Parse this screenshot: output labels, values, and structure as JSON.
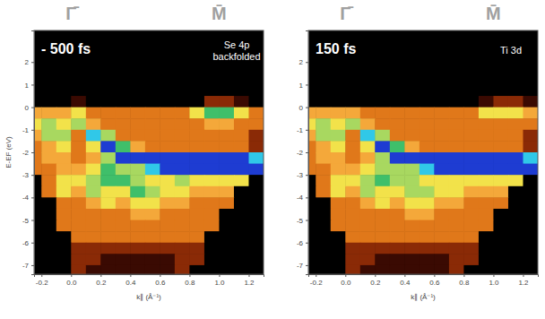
{
  "chart_data": [
    {
      "type": "heatmap",
      "xlabel": "k∥ (Å⁻¹)",
      "ylabel": "E-EF (eV)",
      "xlim": [
        -0.25,
        1.3
      ],
      "ylim": [
        -7.4,
        3.4
      ],
      "xticks": [
        -0.2,
        {
          "value": 0,
          "label": "0.0"
        },
        0.2,
        0.4,
        0.6,
        0.8,
        {
          "value": 1,
          "label": "1.0"
        },
        1.2
      ],
      "yticks": [
        2,
        1,
        0,
        -1,
        -2,
        -3,
        -4,
        -5,
        -6,
        -7
      ],
      "top_labels": [
        {
          "value": 0,
          "label": "Γ̄"
        },
        {
          "value": 1,
          "label": "M̄"
        }
      ],
      "annotations": [
        "- 500 fs",
        "Se 4p",
        "backfolded"
      ],
      "colors": [
        "#000000",
        "#3a0a02",
        "#8a2a06",
        "#e0781a",
        "#f4a83a",
        "#f2e24a",
        "#a8d860",
        "#3fbf6a",
        "#30c8e8",
        "#1e3cd2"
      ],
      "zlim": [
        0,
        9
      ],
      "x_edges": [
        -0.3,
        -0.2,
        -0.1,
        0,
        0.1,
        0.2,
        0.3,
        0.4,
        0.5,
        0.6,
        0.7,
        0.8,
        0.9,
        1.0,
        1.1,
        1.2,
        1.3
      ],
      "y_edges": [
        0.5,
        0,
        -0.5,
        -1,
        -1.5,
        -2,
        -2.5,
        -3,
        -3.5,
        -4,
        -4.5,
        -5,
        -5.5,
        -6,
        -6.5,
        -7,
        -7.5
      ],
      "z": [
        [
          0,
          0,
          0,
          1,
          0,
          0,
          0,
          0,
          0,
          0,
          0,
          0,
          2,
          2,
          1,
          0
        ],
        [
          4,
          4,
          4,
          5,
          3,
          3,
          3,
          3,
          3,
          3,
          3,
          5,
          7,
          7,
          5,
          3
        ],
        [
          5,
          6,
          5,
          6,
          4,
          3,
          3,
          3,
          3,
          3,
          3,
          3,
          4,
          4,
          3,
          3
        ],
        [
          4,
          6,
          6,
          3,
          8,
          6,
          3,
          3,
          3,
          3,
          3,
          3,
          3,
          3,
          3,
          2
        ],
        [
          3,
          4,
          5,
          3,
          5,
          9,
          7,
          4,
          3,
          3,
          3,
          3,
          3,
          3,
          3,
          2
        ],
        [
          3,
          4,
          4,
          3,
          4,
          6,
          9,
          9,
          9,
          9,
          9,
          9,
          9,
          9,
          9,
          8
        ],
        [
          3,
          3,
          4,
          4,
          5,
          7,
          6,
          6,
          8,
          9,
          9,
          9,
          9,
          9,
          9,
          9
        ],
        [
          0,
          3,
          5,
          5,
          6,
          7,
          7,
          6,
          5,
          5,
          6,
          5,
          5,
          5,
          5,
          0
        ],
        [
          0,
          3,
          5,
          4,
          6,
          5,
          5,
          7,
          6,
          5,
          5,
          4,
          4,
          4,
          0,
          0
        ],
        [
          0,
          0,
          3,
          3,
          4,
          5,
          4,
          5,
          5,
          4,
          4,
          3,
          3,
          3,
          0,
          0
        ],
        [
          0,
          0,
          3,
          3,
          3,
          3,
          3,
          4,
          4,
          3,
          3,
          3,
          3,
          0,
          0,
          0
        ],
        [
          0,
          0,
          3,
          3,
          3,
          3,
          3,
          3,
          3,
          3,
          3,
          3,
          3,
          0,
          0,
          0
        ],
        [
          0,
          0,
          0,
          3,
          3,
          3,
          3,
          3,
          3,
          3,
          3,
          3,
          0,
          0,
          0,
          0
        ],
        [
          0,
          0,
          0,
          2,
          2,
          2,
          2,
          2,
          2,
          2,
          2,
          2,
          0,
          0,
          0,
          0
        ],
        [
          0,
          0,
          0,
          2,
          2,
          1,
          1,
          1,
          1,
          1,
          2,
          2,
          0,
          0,
          0,
          0
        ],
        [
          0,
          0,
          0,
          2,
          1,
          1,
          1,
          1,
          1,
          1,
          2,
          0,
          0,
          0,
          0,
          0
        ]
      ]
    },
    {
      "type": "heatmap",
      "xlabel": "k∥ (Å⁻¹)",
      "xlim": [
        -0.25,
        1.3
      ],
      "ylim": [
        -7.4,
        3.4
      ],
      "xticks": [
        -0.2,
        {
          "value": 0,
          "label": "0.0"
        },
        0.2,
        0.4,
        0.6,
        0.8,
        {
          "value": 1,
          "label": "1.0"
        },
        1.2
      ],
      "yticks": [
        2,
        1,
        0,
        -1,
        -2,
        -3,
        -4,
        -5,
        -6,
        -7
      ],
      "top_labels": [
        {
          "value": 0,
          "label": "Γ̄"
        },
        {
          "value": 1,
          "label": "M̄"
        }
      ],
      "annotations": [
        "150 fs",
        "Ti 3d"
      ],
      "colors": [
        "#000000",
        "#3a0a02",
        "#8a2a06",
        "#e0781a",
        "#f4a83a",
        "#f2e24a",
        "#a8d860",
        "#3fbf6a",
        "#30c8e8",
        "#1e3cd2"
      ],
      "zlim": [
        0,
        9
      ],
      "x_edges": [
        -0.3,
        -0.2,
        -0.1,
        0,
        0.1,
        0.2,
        0.3,
        0.4,
        0.5,
        0.6,
        0.7,
        0.8,
        0.9,
        1.0,
        1.1,
        1.2,
        1.3
      ],
      "y_edges": [
        0.5,
        0,
        -0.5,
        -1,
        -1.5,
        -2,
        -2.5,
        -3,
        -3.5,
        -4,
        -4.5,
        -5,
        -5.5,
        -6,
        -6.5,
        -7,
        -7.5
      ],
      "z": [
        [
          0,
          0,
          0,
          0,
          0,
          0,
          0,
          0,
          0,
          0,
          0,
          0,
          1,
          2,
          2,
          1
        ],
        [
          4,
          4,
          4,
          4,
          3,
          3,
          3,
          3,
          3,
          3,
          3,
          3,
          5,
          5,
          5,
          4
        ],
        [
          5,
          6,
          5,
          6,
          4,
          3,
          3,
          3,
          3,
          3,
          3,
          3,
          3,
          3,
          3,
          3
        ],
        [
          4,
          6,
          6,
          3,
          8,
          6,
          3,
          3,
          3,
          3,
          3,
          3,
          3,
          3,
          3,
          2
        ],
        [
          3,
          4,
          5,
          3,
          5,
          9,
          7,
          4,
          3,
          3,
          3,
          3,
          3,
          3,
          3,
          2
        ],
        [
          3,
          4,
          4,
          3,
          4,
          6,
          9,
          9,
          9,
          9,
          9,
          9,
          9,
          9,
          9,
          8
        ],
        [
          3,
          3,
          4,
          4,
          5,
          6,
          6,
          6,
          8,
          9,
          9,
          9,
          9,
          9,
          9,
          9
        ],
        [
          0,
          3,
          5,
          5,
          6,
          7,
          6,
          6,
          5,
          5,
          5,
          5,
          5,
          5,
          5,
          0
        ],
        [
          0,
          3,
          5,
          4,
          6,
          5,
          5,
          6,
          6,
          5,
          5,
          4,
          4,
          4,
          0,
          0
        ],
        [
          0,
          0,
          3,
          3,
          4,
          5,
          4,
          5,
          5,
          4,
          4,
          3,
          3,
          3,
          0,
          0
        ],
        [
          0,
          0,
          3,
          3,
          3,
          3,
          3,
          4,
          4,
          3,
          3,
          3,
          3,
          0,
          0,
          0
        ],
        [
          0,
          0,
          3,
          3,
          3,
          3,
          3,
          3,
          3,
          3,
          3,
          3,
          3,
          0,
          0,
          0
        ],
        [
          0,
          0,
          0,
          3,
          3,
          3,
          3,
          3,
          3,
          3,
          3,
          3,
          0,
          0,
          0,
          0
        ],
        [
          0,
          0,
          0,
          2,
          2,
          2,
          2,
          2,
          2,
          2,
          2,
          2,
          0,
          0,
          0,
          0
        ],
        [
          0,
          0,
          0,
          2,
          2,
          1,
          1,
          1,
          1,
          1,
          2,
          2,
          0,
          0,
          0,
          0
        ],
        [
          0,
          0,
          0,
          2,
          1,
          1,
          1,
          1,
          1,
          1,
          2,
          0,
          0,
          0,
          0,
          0
        ]
      ]
    }
  ]
}
